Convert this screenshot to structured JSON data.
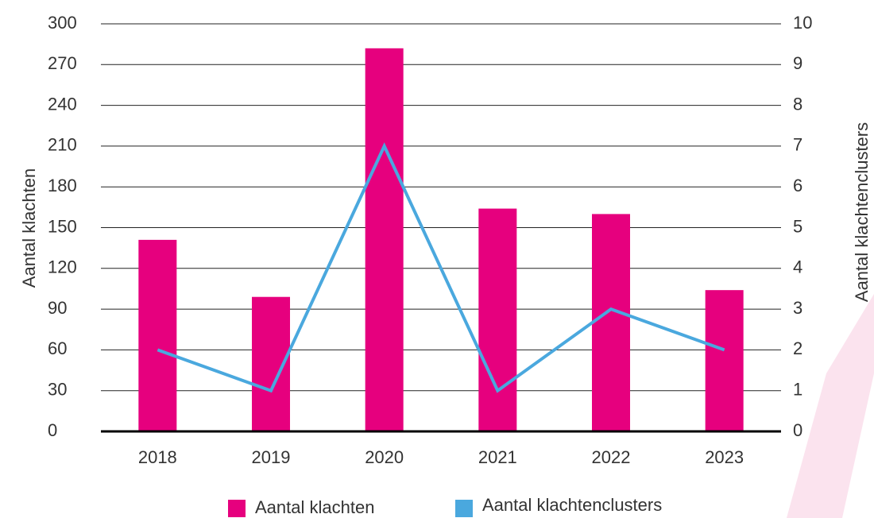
{
  "chart_data": {
    "type": "bar_line",
    "categories": [
      "2018",
      "2019",
      "2020",
      "2021",
      "2022",
      "2023"
    ],
    "series": [
      {
        "name": "Aantal klachten",
        "color": "#e6007e",
        "type": "bar",
        "values": [
          141,
          99,
          282,
          164,
          160,
          104
        ]
      },
      {
        "name": "Aantal klachtenclusters",
        "color": "#4aa8de",
        "type": "line",
        "axis": "y2",
        "values": [
          2,
          1,
          7,
          1,
          3,
          2
        ]
      }
    ],
    "ylabel": "Aantal klachten",
    "y2label": "Aantal klachtenclusters",
    "ylim": [
      0,
      300
    ],
    "yticks": [
      0,
      30,
      60,
      90,
      120,
      150,
      180,
      210,
      240,
      270,
      300
    ],
    "y2lim": [
      0,
      10
    ],
    "y2ticks": [
      0,
      1,
      2,
      3,
      4,
      5,
      6,
      7,
      8,
      9,
      10
    ],
    "grid": true,
    "legend": "bottom"
  }
}
